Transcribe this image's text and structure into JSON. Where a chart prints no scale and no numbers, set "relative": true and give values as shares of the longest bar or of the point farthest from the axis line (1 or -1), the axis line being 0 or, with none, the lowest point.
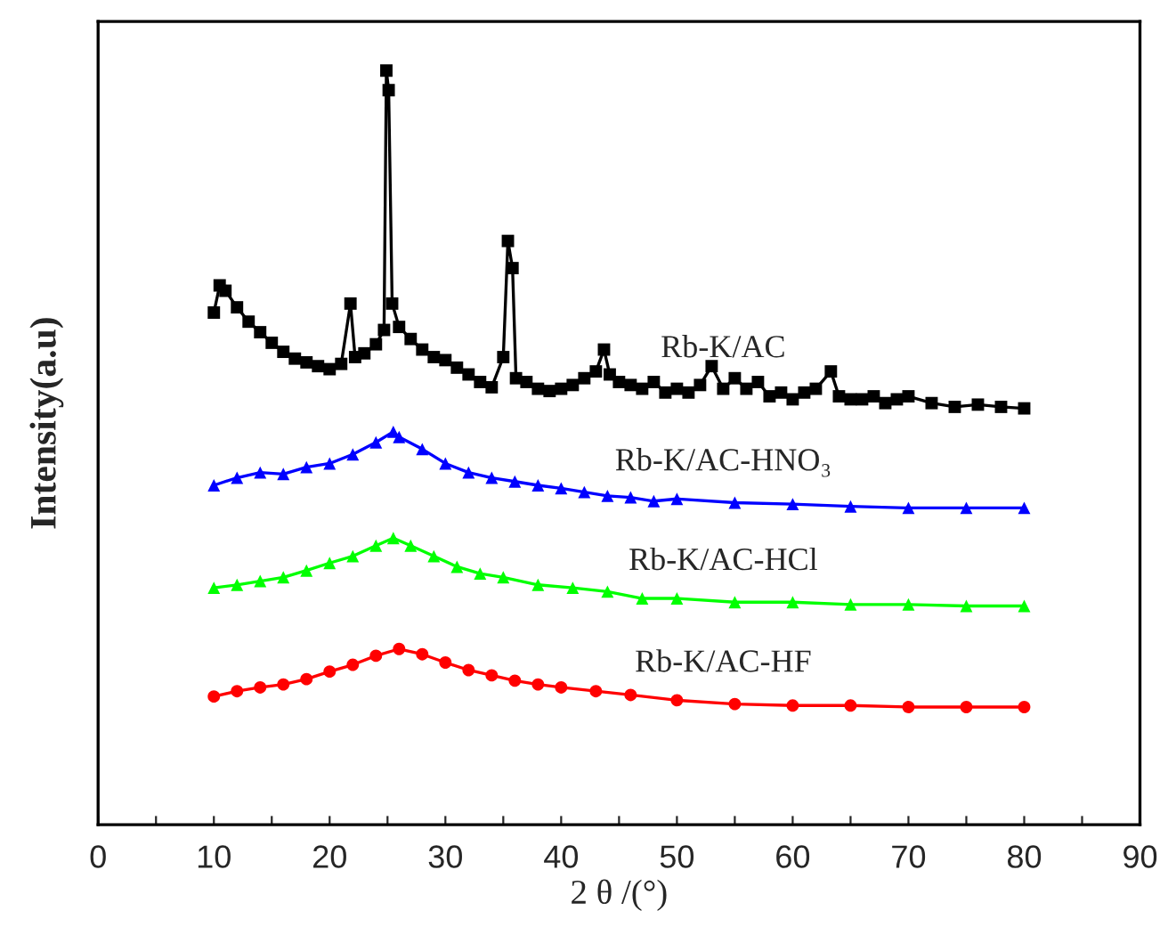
{
  "chart_data": {
    "type": "line",
    "relative": true,
    "xlabel": "2 θ /(°)",
    "ylabel": "Intensity(a.u)",
    "xlim": [
      0,
      90
    ],
    "xticks": [
      0,
      {
        "value": 5,
        "label": null
      },
      10,
      {
        "value": 15,
        "label": null
      },
      20,
      {
        "value": 25,
        "label": null
      },
      30,
      {
        "value": 35,
        "label": null
      },
      40,
      {
        "value": 45,
        "label": null
      },
      50,
      {
        "value": 55,
        "label": null
      },
      60,
      {
        "value": 65,
        "label": null
      },
      70,
      {
        "value": 75,
        "label": null
      },
      80,
      {
        "value": 85,
        "label": null
      },
      90
    ],
    "tick_labels": "x",
    "grid": false,
    "legend": false,
    "series": [
      {
        "name": "Rb-K/AC",
        "color": "#000000",
        "marker": "square",
        "x": [
          10,
          10.5,
          11,
          12,
          13,
          14,
          15,
          16,
          17,
          18,
          19,
          20,
          21,
          21.8,
          22.2,
          23,
          24,
          24.7,
          24.9,
          25.1,
          25.4,
          26,
          27,
          28,
          29,
          30,
          31,
          32,
          33,
          34,
          35,
          35.4,
          35.8,
          36.1,
          37,
          38,
          39,
          40,
          41,
          42,
          43,
          43.7,
          44.2,
          45,
          46,
          47,
          48,
          49,
          50,
          51,
          52,
          53,
          54,
          55,
          56,
          57,
          58,
          59,
          60,
          61,
          62,
          63.3,
          64,
          65,
          66,
          67,
          68,
          69,
          70,
          72,
          74,
          76,
          78,
          80
        ],
        "values": [
          0.679,
          0.715,
          0.708,
          0.686,
          0.667,
          0.653,
          0.639,
          0.627,
          0.618,
          0.613,
          0.608,
          0.604,
          0.611,
          0.691,
          0.62,
          0.625,
          0.637,
          0.656,
          1.0,
          0.974,
          0.691,
          0.66,
          0.644,
          0.63,
          0.62,
          0.616,
          0.606,
          0.597,
          0.587,
          0.58,
          0.62,
          0.774,
          0.738,
          0.592,
          0.587,
          0.578,
          0.575,
          0.578,
          0.583,
          0.592,
          0.601,
          0.63,
          0.597,
          0.587,
          0.583,
          0.578,
          0.587,
          0.573,
          0.578,
          0.573,
          0.583,
          0.608,
          0.578,
          0.592,
          0.578,
          0.587,
          0.568,
          0.573,
          0.564,
          0.573,
          0.578,
          0.601,
          0.568,
          0.564,
          0.564,
          0.568,
          0.559,
          0.564,
          0.568,
          0.559,
          0.554,
          0.557,
          0.554,
          0.552
        ]
      },
      {
        "name": "Rb-K/AC-HNO₃",
        "color": "#0000ff",
        "marker": "triangle",
        "x": [
          10,
          12,
          14,
          16,
          18,
          20,
          22,
          24,
          25.5,
          26,
          28,
          30,
          32,
          34,
          36,
          38,
          40,
          42,
          44,
          46,
          48,
          50,
          55,
          60,
          65,
          70,
          75,
          80
        ],
        "values": [
          0.45,
          0.46,
          0.467,
          0.465,
          0.474,
          0.479,
          0.491,
          0.507,
          0.521,
          0.514,
          0.498,
          0.479,
          0.467,
          0.46,
          0.455,
          0.45,
          0.446,
          0.441,
          0.436,
          0.434,
          0.429,
          0.432,
          0.427,
          0.425,
          0.422,
          0.42,
          0.42,
          0.42
        ]
      },
      {
        "name": "Rb-K/AC-HCl",
        "color": "#00ff00",
        "marker": "triangle",
        "x": [
          10,
          12,
          14,
          16,
          18,
          20,
          22,
          24,
          25.5,
          27,
          29,
          31,
          33,
          35,
          38,
          41,
          44,
          47,
          50,
          55,
          60,
          65,
          70,
          75,
          80
        ],
        "values": [
          0.314,
          0.318,
          0.323,
          0.328,
          0.337,
          0.347,
          0.356,
          0.37,
          0.38,
          0.37,
          0.356,
          0.342,
          0.333,
          0.328,
          0.318,
          0.314,
          0.309,
          0.3,
          0.3,
          0.295,
          0.295,
          0.292,
          0.292,
          0.29,
          0.29
        ]
      },
      {
        "name": "Rb-K/AC-HF",
        "color": "#ff0000",
        "marker": "circle",
        "x": [
          10,
          12,
          14,
          16,
          18,
          20,
          22,
          24,
          26,
          28,
          30,
          32,
          34,
          36,
          38,
          40,
          43,
          46,
          50,
          55,
          60,
          65,
          70,
          75,
          80
        ],
        "values": [
          0.17,
          0.177,
          0.182,
          0.186,
          0.193,
          0.203,
          0.212,
          0.224,
          0.233,
          0.226,
          0.215,
          0.205,
          0.198,
          0.191,
          0.186,
          0.182,
          0.177,
          0.172,
          0.165,
          0.16,
          0.158,
          0.158,
          0.156,
          0.156,
          0.156
        ]
      }
    ]
  }
}
